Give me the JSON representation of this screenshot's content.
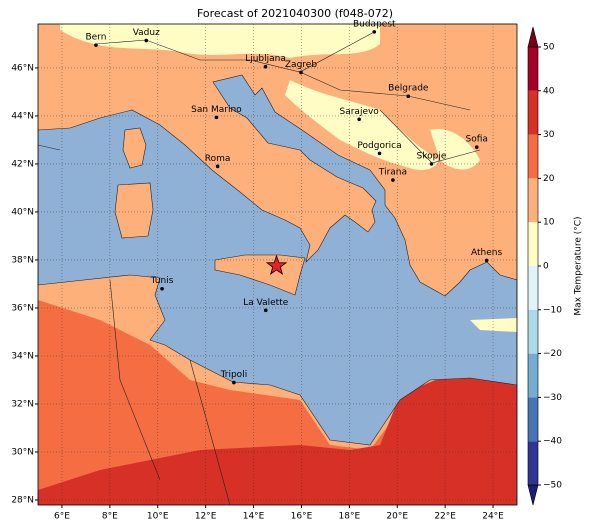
{
  "chart_data": {
    "type": "map",
    "title": "Forecast of 2021040300 (f048-072)",
    "xlim": [
      5,
      25
    ],
    "ylim": [
      27.79,
      47.83
    ],
    "xticks": [
      {
        "value": 6,
        "label": "6°E"
      },
      {
        "value": 8,
        "label": "8°E"
      },
      {
        "value": 10,
        "label": "10°E"
      },
      {
        "value": 12,
        "label": "12°E"
      },
      {
        "value": 14,
        "label": "14°E"
      },
      {
        "value": 16,
        "label": "16°E"
      },
      {
        "value": 18,
        "label": "18°E"
      },
      {
        "value": 20,
        "label": "20°E"
      },
      {
        "value": 22,
        "label": "22°E"
      },
      {
        "value": 24,
        "label": "24°E"
      }
    ],
    "yticks": [
      {
        "value": 28,
        "label": "28°N"
      },
      {
        "value": 30,
        "label": "30°N"
      },
      {
        "value": 32,
        "label": "32°N"
      },
      {
        "value": 34,
        "label": "34°N"
      },
      {
        "value": 36,
        "label": "36°N"
      },
      {
        "value": 38,
        "label": "38°N"
      },
      {
        "value": 40,
        "label": "40°N"
      },
      {
        "value": 42,
        "label": "42°N"
      },
      {
        "value": 44,
        "label": "44°N"
      },
      {
        "value": 46,
        "label": "46°N"
      }
    ],
    "grid": true,
    "cities": [
      {
        "name": "Bern",
        "lon": 7.42,
        "lat": 46.95
      },
      {
        "name": "Vaduz",
        "lon": 9.52,
        "lat": 47.14
      },
      {
        "name": "Budapest",
        "lon": 19.04,
        "lat": 47.5
      },
      {
        "name": "Ljubljana",
        "lon": 14.5,
        "lat": 46.05
      },
      {
        "name": "Zagreb",
        "lon": 15.98,
        "lat": 45.81
      },
      {
        "name": "Belgrade",
        "lon": 20.46,
        "lat": 44.82
      },
      {
        "name": "Sarajevo",
        "lon": 18.41,
        "lat": 43.86
      },
      {
        "name": "San Marino",
        "lon": 12.45,
        "lat": 43.94
      },
      {
        "name": "Sofia",
        "lon": 23.32,
        "lat": 42.7
      },
      {
        "name": "Podgorica",
        "lon": 19.26,
        "lat": 42.44
      },
      {
        "name": "Skopje",
        "lon": 21.43,
        "lat": 42.0
      },
      {
        "name": "Roma",
        "lon": 12.5,
        "lat": 41.9
      },
      {
        "name": "Tirana",
        "lon": 19.82,
        "lat": 41.33
      },
      {
        "name": "Athens",
        "lon": 23.73,
        "lat": 37.98
      },
      {
        "name": "Tunis",
        "lon": 10.18,
        "lat": 36.8
      },
      {
        "name": "La Valette",
        "lon": 14.51,
        "lat": 35.9
      },
      {
        "name": "Tripoli",
        "lon": 13.18,
        "lat": 32.89
      }
    ],
    "marker": {
      "lon": 14.96,
      "lat": 37.75,
      "color": "#e8202a"
    },
    "colorbar": {
      "label": "Max Temperature (°C)",
      "ticks": [
        {
          "value": -50,
          "label": "−50"
        },
        {
          "value": -40,
          "label": "−40"
        },
        {
          "value": -30,
          "label": "−30"
        },
        {
          "value": -20,
          "label": "−20"
        },
        {
          "value": -10,
          "label": "−10"
        },
        0,
        10,
        20,
        30,
        40,
        50
      ],
      "colors": [
        "#313695",
        "#4575b4",
        "#74add1",
        "#abd9e9",
        "#e0f3f8",
        "#fffdc4",
        "#fdb07a",
        "#f46d43",
        "#d73027",
        "#a50026"
      ],
      "under_color": "#1b1f7a",
      "over_color": "#7a0016"
    }
  }
}
